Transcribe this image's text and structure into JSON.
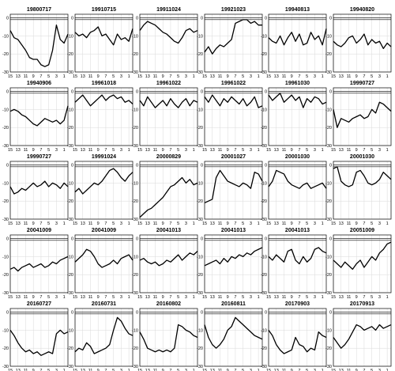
{
  "chart_data": {
    "type": "line",
    "layout": {
      "rows": 5,
      "cols": 6
    },
    "x_ticks": [
      "15",
      "13",
      "11",
      "9",
      "7",
      "5",
      "3",
      "1"
    ],
    "xlim": [
      15,
      0
    ],
    "y_ticks": [
      "0",
      "-10",
      "-20",
      "-30"
    ],
    "ylim": [
      -30,
      2
    ],
    "grid": true,
    "reference_lines": [
      0,
      -1
    ],
    "panels": [
      {
        "title": "19800717",
        "x": [
          15,
          14,
          13,
          12,
          11,
          10,
          9,
          8,
          7,
          6,
          5,
          4,
          3,
          2,
          1,
          0
        ],
        "y": [
          -7,
          -11,
          -12,
          -15,
          -18,
          -22,
          -23,
          -23,
          -26,
          -27,
          -26,
          -18,
          -4,
          -12,
          -14,
          -9
        ]
      },
      {
        "title": "19910715",
        "x": [
          15,
          14,
          13,
          12,
          11,
          10,
          9,
          8,
          7,
          6,
          5,
          4,
          3,
          2,
          1,
          0
        ],
        "y": [
          -8,
          -10,
          -9,
          -11,
          -8,
          -7,
          -5,
          -10,
          -9,
          -12,
          -15,
          -9,
          -12,
          -11,
          -13,
          -6
        ]
      },
      {
        "title": "19911024",
        "x": [
          15,
          14,
          13,
          12,
          11,
          10,
          9,
          8,
          7,
          6,
          5,
          4,
          3,
          2,
          1,
          0
        ],
        "y": [
          -7,
          -4,
          -2,
          -3,
          -4,
          -6,
          -8,
          -9,
          -11,
          -13,
          -14,
          -11,
          -7,
          -6,
          -8,
          -7
        ]
      },
      {
        "title": "19921023",
        "x": [
          15,
          14,
          13,
          12,
          11,
          10,
          9,
          8,
          7,
          6,
          5,
          4,
          3,
          2,
          1,
          0
        ],
        "y": [
          -19,
          -16,
          -20,
          -17,
          -15,
          -16,
          -14,
          -12,
          -3,
          -2,
          -1,
          -1,
          -3,
          -2,
          -4,
          -4
        ]
      },
      {
        "title": "19940813",
        "x": [
          15,
          14,
          13,
          12,
          11,
          10,
          9,
          8,
          7,
          6,
          5,
          4,
          3,
          2,
          1,
          0
        ],
        "y": [
          -11,
          -13,
          -14,
          -10,
          -15,
          -11,
          -8,
          -13,
          -9,
          -15,
          -14,
          -8,
          -12,
          -10,
          -15,
          -6
        ]
      },
      {
        "title": "19940820",
        "x": [
          15,
          14,
          13,
          12,
          11,
          10,
          9,
          8,
          7,
          6,
          5,
          4,
          3,
          2,
          1,
          0
        ],
        "y": [
          -13,
          -15,
          -16,
          -14,
          -11,
          -10,
          -14,
          -12,
          -9,
          -15,
          -12,
          -14,
          -13,
          -17,
          -14,
          -16
        ]
      },
      {
        "title": "19940906",
        "x": [
          15,
          14,
          13,
          12,
          11,
          10,
          9,
          8,
          7,
          6,
          5,
          4,
          3,
          2,
          1,
          0
        ],
        "y": [
          -11,
          -10,
          -11,
          -13,
          -14,
          -16,
          -18,
          -19,
          -17,
          -15,
          -16,
          -17,
          -16,
          -18,
          -16,
          -8
        ]
      },
      {
        "title": "19961018",
        "x": [
          15,
          14,
          13,
          12,
          11,
          10,
          9,
          8,
          7,
          6,
          5,
          4,
          3,
          2,
          1,
          0
        ],
        "y": [
          -6,
          -4,
          -2,
          -5,
          -8,
          -6,
          -4,
          -2,
          -5,
          -3,
          -2,
          -4,
          -3,
          -6,
          -5,
          -7
        ]
      },
      {
        "title": "19961022",
        "x": [
          15,
          14,
          13,
          12,
          11,
          10,
          9,
          8,
          7,
          6,
          5,
          4,
          3,
          2,
          1,
          0
        ],
        "y": [
          -5,
          -8,
          -3,
          -6,
          -9,
          -7,
          -5,
          -8,
          -4,
          -7,
          -9,
          -6,
          -4,
          -8,
          -5,
          -6
        ]
      },
      {
        "title": "19961022",
        "x": [
          15,
          14,
          13,
          12,
          11,
          10,
          9,
          8,
          7,
          6,
          5,
          4,
          3,
          2,
          1,
          0
        ],
        "y": [
          -3,
          -6,
          -2,
          -5,
          -8,
          -4,
          -6,
          -3,
          -5,
          -7,
          -4,
          -8,
          -6,
          -3,
          -9,
          -8
        ]
      },
      {
        "title": "19961030",
        "x": [
          15,
          14,
          13,
          12,
          11,
          10,
          9,
          8,
          7,
          6,
          5,
          4,
          3,
          2,
          1,
          0
        ],
        "y": [
          -2,
          -5,
          -3,
          -1,
          -6,
          -4,
          -2,
          -5,
          -3,
          -9,
          -4,
          -6,
          -3,
          -4,
          -7,
          -6
        ]
      },
      {
        "title": "19990727",
        "x": [
          15,
          14,
          13,
          12,
          11,
          10,
          9,
          8,
          7,
          6,
          5,
          4,
          3,
          2,
          1,
          0
        ],
        "y": [
          -10,
          -20,
          -15,
          -16,
          -17,
          -15,
          -14,
          -13,
          -15,
          -14,
          -10,
          -12,
          -6,
          -7,
          -9,
          -11
        ]
      },
      {
        "title": "19990727",
        "x": [
          15,
          14,
          13,
          12,
          11,
          10,
          9,
          8,
          7,
          6,
          5,
          4,
          3,
          2,
          1,
          0
        ],
        "y": [
          -12,
          -16,
          -15,
          -13,
          -14,
          -12,
          -10,
          -12,
          -11,
          -9,
          -12,
          -10,
          -11,
          -13,
          -10,
          -12
        ]
      },
      {
        "title": "19991024",
        "x": [
          15,
          14,
          13,
          12,
          11,
          10,
          9,
          8,
          7,
          6,
          5,
          4,
          3,
          2,
          1,
          0
        ],
        "y": [
          -15,
          -13,
          -16,
          -14,
          -12,
          -10,
          -11,
          -9,
          -6,
          -3,
          -2,
          -4,
          -7,
          -9,
          -6,
          -4
        ]
      },
      {
        "title": "20000829",
        "x": [
          15,
          14,
          13,
          12,
          11,
          10,
          9,
          8,
          7,
          6,
          5,
          4,
          3,
          2,
          1,
          0
        ],
        "y": [
          -29,
          -27,
          -25,
          -24,
          -22,
          -20,
          -18,
          -15,
          -12,
          -11,
          -9,
          -7,
          -10,
          -8,
          -11,
          -10
        ]
      },
      {
        "title": "20001027",
        "x": [
          15,
          14,
          13,
          12,
          11,
          10,
          9,
          8,
          7,
          6,
          5,
          4,
          3,
          2,
          1,
          0
        ],
        "y": [
          -21,
          -20,
          -19,
          -7,
          -3,
          -6,
          -9,
          -10,
          -11,
          -12,
          -10,
          -11,
          -13,
          -4,
          -5,
          -9
        ]
      },
      {
        "title": "20001030",
        "x": [
          15,
          14,
          13,
          12,
          11,
          10,
          9,
          8,
          7,
          6,
          5,
          4,
          3,
          2,
          1,
          0
        ],
        "y": [
          -12,
          -9,
          -3,
          -4,
          -5,
          -9,
          -11,
          -12,
          -13,
          -11,
          -10,
          -13,
          -12,
          -11,
          -10,
          -13
        ]
      },
      {
        "title": "20001030",
        "x": [
          15,
          14,
          13,
          12,
          11,
          10,
          9,
          8,
          7,
          6,
          5,
          4,
          3,
          2,
          1,
          0
        ],
        "y": [
          -2,
          -1,
          -9,
          -11,
          -12,
          -11,
          -4,
          -3,
          -6,
          -10,
          -11,
          -10,
          -8,
          -4,
          -6,
          -8
        ]
      },
      {
        "title": "20041009",
        "x": [
          15,
          14,
          13,
          12,
          11,
          10,
          9,
          8,
          7,
          6,
          5,
          4,
          3,
          2,
          1,
          0
        ],
        "y": [
          -17,
          -16,
          -18,
          -16,
          -15,
          -14,
          -16,
          -15,
          -14,
          -16,
          -15,
          -13,
          -14,
          -12,
          -11,
          -10
        ]
      },
      {
        "title": "20041009",
        "x": [
          15,
          14,
          13,
          12,
          11,
          10,
          9,
          8,
          7,
          6,
          5,
          4,
          3,
          2,
          1,
          0
        ],
        "y": [
          -13,
          -11,
          -9,
          -6,
          -7,
          -10,
          -14,
          -16,
          -15,
          -14,
          -12,
          -14,
          -11,
          -10,
          -9,
          -12
        ]
      },
      {
        "title": "20041013",
        "x": [
          15,
          14,
          13,
          12,
          11,
          10,
          9,
          8,
          7,
          6,
          5,
          4,
          3,
          2,
          1,
          0
        ],
        "y": [
          -12,
          -11,
          -13,
          -14,
          -13,
          -15,
          -14,
          -12,
          -13,
          -11,
          -9,
          -12,
          -10,
          -8,
          -9,
          -7
        ]
      },
      {
        "title": "20041013",
        "x": [
          15,
          14,
          13,
          12,
          11,
          10,
          9,
          8,
          7,
          6,
          5,
          4,
          3,
          2,
          1,
          0
        ],
        "y": [
          -15,
          -14,
          -13,
          -12,
          -14,
          -11,
          -13,
          -10,
          -11,
          -9,
          -10,
          -8,
          -9,
          -7,
          -6,
          -5
        ]
      },
      {
        "title": "20041013",
        "x": [
          15,
          14,
          13,
          12,
          11,
          10,
          9,
          8,
          7,
          6,
          5,
          4,
          3,
          2,
          1,
          0
        ],
        "y": [
          -10,
          -12,
          -9,
          -11,
          -13,
          -7,
          -6,
          -12,
          -14,
          -10,
          -13,
          -11,
          -6,
          -5,
          -7,
          -8
        ]
      },
      {
        "title": "20051009",
        "x": [
          15,
          14,
          13,
          12,
          11,
          10,
          9,
          8,
          7,
          6,
          5,
          4,
          3,
          2,
          1,
          0
        ],
        "y": [
          -12,
          -14,
          -16,
          -13,
          -15,
          -17,
          -14,
          -12,
          -16,
          -13,
          -10,
          -12,
          -8,
          -6,
          -3,
          -2
        ]
      },
      {
        "title": "20160727",
        "x": [
          15,
          14,
          13,
          12,
          11,
          10,
          9,
          8,
          7,
          6,
          5,
          4,
          3,
          2,
          1,
          0
        ],
        "y": [
          -10,
          -13,
          -17,
          -20,
          -22,
          -21,
          -23,
          -22,
          -24,
          -23,
          -22,
          -23,
          -12,
          -10,
          -12,
          -11
        ]
      },
      {
        "title": "20160731",
        "x": [
          15,
          14,
          13,
          12,
          11,
          10,
          9,
          8,
          7,
          6,
          5,
          4,
          3,
          2,
          1,
          0
        ],
        "y": [
          -22,
          -20,
          -21,
          -17,
          -19,
          -23,
          -22,
          -21,
          -20,
          -18,
          -10,
          -3,
          -5,
          -9,
          -12,
          -13
        ]
      },
      {
        "title": "20160802",
        "x": [
          15,
          14,
          13,
          12,
          11,
          10,
          9,
          8,
          7,
          6,
          5,
          4,
          3,
          2,
          1,
          0
        ],
        "y": [
          -11,
          -15,
          -20,
          -21,
          -22,
          -21,
          -22,
          -21,
          -22,
          -20,
          -7,
          -8,
          -10,
          -11,
          -13,
          -14
        ]
      },
      {
        "title": "20160811",
        "x": [
          15,
          14,
          13,
          12,
          11,
          10,
          9,
          8,
          7,
          6,
          5,
          4,
          3,
          2,
          1,
          0
        ],
        "y": [
          -7,
          -14,
          -18,
          -20,
          -18,
          -15,
          -10,
          -8,
          -3,
          -5,
          -7,
          -9,
          -11,
          -13,
          -14,
          -15
        ]
      },
      {
        "title": "20170903",
        "x": [
          15,
          14,
          13,
          12,
          11,
          10,
          9,
          8,
          7,
          6,
          5,
          4,
          3,
          2,
          1,
          0
        ],
        "y": [
          -10,
          -13,
          -18,
          -21,
          -23,
          -22,
          -21,
          -14,
          -18,
          -19,
          -22,
          -20,
          -21,
          -11,
          -13,
          -14
        ]
      },
      {
        "title": "20170913",
        "x": [
          15,
          14,
          13,
          12,
          11,
          10,
          9,
          8,
          7,
          6,
          5,
          4,
          3,
          2,
          1,
          0
        ],
        "y": [
          -14,
          -17,
          -20,
          -18,
          -15,
          -11,
          -7,
          -8,
          -10,
          -9,
          -8,
          -10,
          -7,
          -9,
          -8,
          -7
        ]
      }
    ]
  }
}
